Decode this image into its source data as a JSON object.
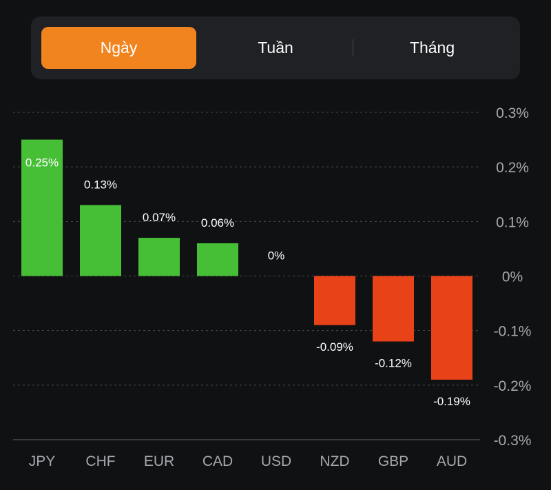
{
  "tabs": [
    {
      "label": "Ngày",
      "active": true
    },
    {
      "label": "Tuần",
      "active": false
    },
    {
      "label": "Tháng",
      "active": false
    }
  ],
  "colors": {
    "background": "#101113",
    "segment_bg": "#1f2125",
    "active_tab": "#f28420",
    "positive": "#46be35",
    "negative": "#e84219",
    "grid": "#4a4c50",
    "axis_text": "#a6a8ad",
    "label_text": "#ffffff"
  },
  "chart_data": {
    "type": "bar",
    "categories": [
      "JPY",
      "CHF",
      "EUR",
      "CAD",
      "USD",
      "NZD",
      "GBP",
      "AUD"
    ],
    "values": [
      0.25,
      0.13,
      0.07,
      0.06,
      0,
      -0.09,
      -0.12,
      -0.19
    ],
    "value_labels": [
      "0.25%",
      "0.13%",
      "0.07%",
      "0.06%",
      "0%",
      "-0.09%",
      "-0.12%",
      "-0.19%"
    ],
    "yticks": [
      0.3,
      0.2,
      0.1,
      0,
      -0.1,
      -0.2,
      -0.3
    ],
    "ytick_labels": [
      "0.3%",
      "0.2%",
      "0.1%",
      "0%",
      "-0.1%",
      "-0.2%",
      "-0.3%"
    ],
    "ylim": [
      -0.3,
      0.3
    ],
    "grid": true,
    "yaxis_position": "right"
  }
}
